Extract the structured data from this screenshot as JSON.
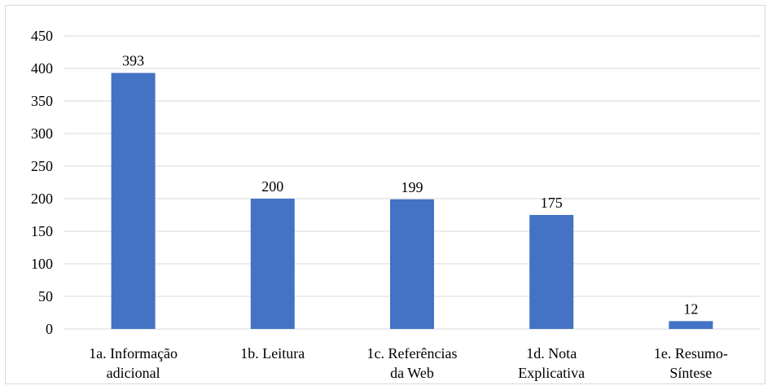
{
  "chart_data": {
    "type": "bar",
    "categories": [
      [
        "1a. Informação",
        "adicional"
      ],
      [
        "1b. Leitura"
      ],
      [
        "1c. Referências",
        "da Web"
      ],
      [
        "1d. Nota",
        "Explicativa"
      ],
      [
        "1e. Resumo-",
        "Síntese"
      ]
    ],
    "values": [
      393,
      200,
      199,
      175,
      12
    ],
    "data_labels": [
      "393",
      "200",
      "199",
      "175",
      "12"
    ],
    "ylim": [
      0,
      450
    ],
    "yticks": [
      0,
      50,
      100,
      150,
      200,
      250,
      300,
      350,
      400,
      450
    ],
    "title": "",
    "xlabel": "",
    "ylabel": "",
    "grid": true,
    "legend": "none",
    "colors": {
      "bar": "#4472c4",
      "grid": "#d9d9d9",
      "text": "#000000"
    }
  }
}
